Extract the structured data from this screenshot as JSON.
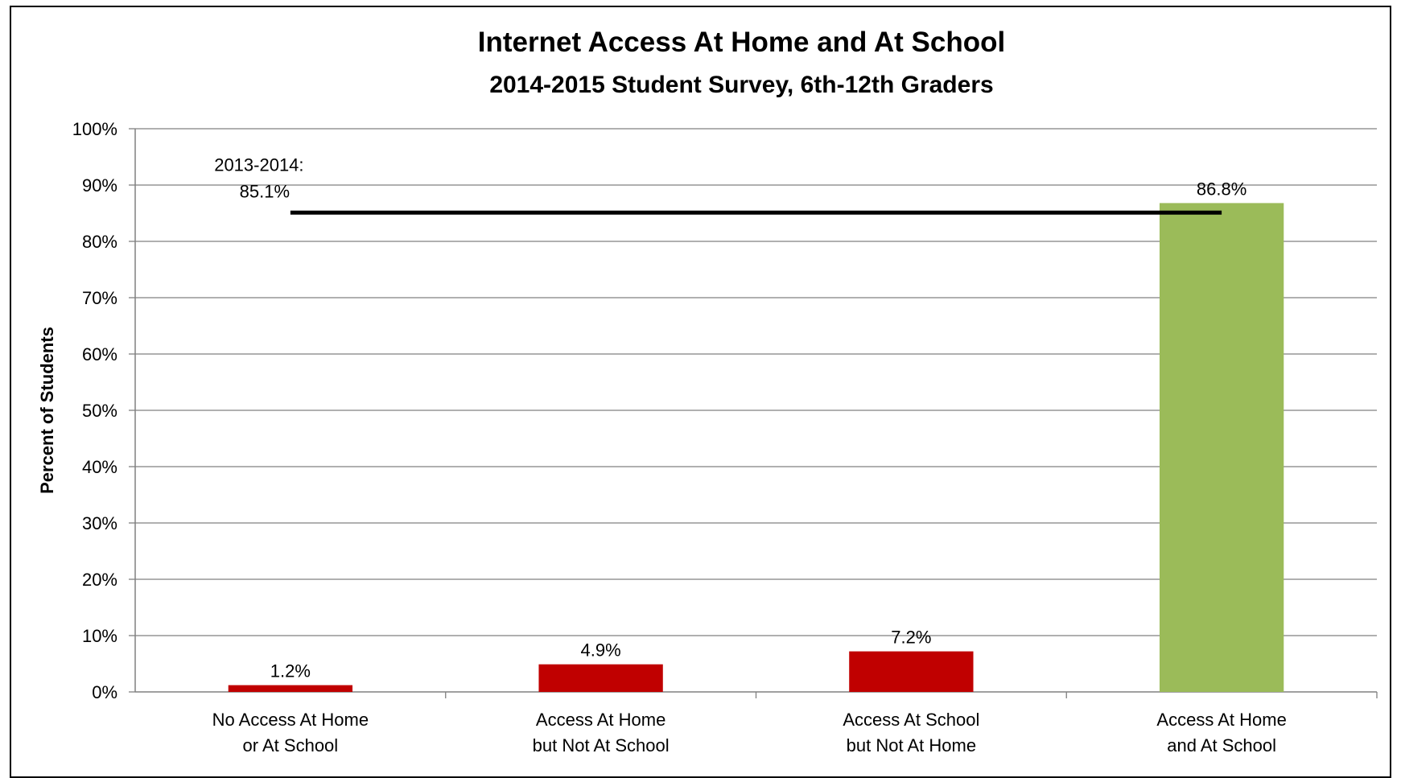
{
  "chart_data": {
    "type": "bar",
    "title": "Internet Access At Home and At School",
    "subtitle": "2014-2015 Student Survey, 6th-12th Graders",
    "ylabel": "Percent of Students",
    "xlabel": "",
    "ylim": [
      0,
      100
    ],
    "y_ticks": [
      "0%",
      "10%",
      "20%",
      "30%",
      "40%",
      "50%",
      "60%",
      "70%",
      "80%",
      "90%",
      "100%"
    ],
    "y_tick_values": [
      0,
      10,
      20,
      30,
      40,
      50,
      60,
      70,
      80,
      90,
      100
    ],
    "categories": [
      [
        "No Access At Home",
        "or At School"
      ],
      [
        "Access At Home",
        "but Not At School"
      ],
      [
        "Access At School",
        "but Not At Home"
      ],
      [
        "Access At Home",
        "and At School"
      ]
    ],
    "values": [
      1.2,
      4.9,
      7.2,
      86.8
    ],
    "data_labels": [
      "1.2%",
      "4.9%",
      "7.2%",
      "86.8%"
    ],
    "bar_colors": [
      "#c00000",
      "#c00000",
      "#c00000",
      "#9bbb59"
    ],
    "grid": true,
    "reference_line": {
      "value": 85.1,
      "label_lines": [
        "2013-2014:",
        "85.1%"
      ],
      "color": "#000000"
    }
  }
}
